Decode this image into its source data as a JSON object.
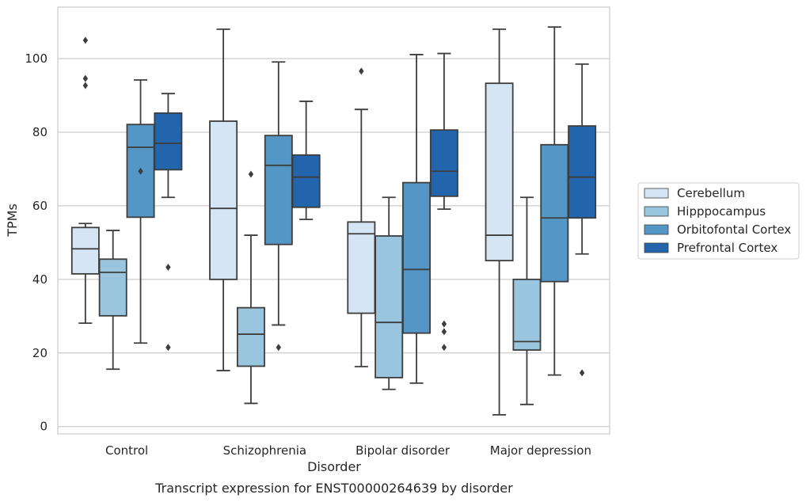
{
  "caption": "Transcript expression for ENST00000264639 by disorder",
  "chart_data": {
    "type": "boxplot",
    "xlabel": "Disorder",
    "ylabel": "TPMs",
    "ylim": [
      -2,
      114
    ],
    "yticks": [
      0,
      20,
      40,
      60,
      80,
      100
    ],
    "grid": "horizontal",
    "legend_position": "right",
    "categories": [
      "Control",
      "Schizophrenia",
      "Bipolar disorder",
      "Major depression"
    ],
    "series": [
      {
        "name": "Cerebellum",
        "color": "#d6e5f4",
        "boxes": [
          {
            "q1": 41.5,
            "median": 48.3,
            "q3": 54.1,
            "whisker_low": 28.1,
            "whisker_high": 55.2,
            "outliers": [
              105.0,
              94.6,
              92.7
            ]
          },
          {
            "q1": 40.0,
            "median": 59.3,
            "q3": 83.0,
            "whisker_low": 15.2,
            "whisker_high": 108.0,
            "outliers": []
          },
          {
            "q1": 30.8,
            "median": 52.4,
            "q3": 55.6,
            "whisker_low": 16.3,
            "whisker_high": 86.2,
            "outliers": [
              96.6
            ]
          },
          {
            "q1": 45.1,
            "median": 52.0,
            "q3": 93.3,
            "whisker_low": 3.2,
            "whisker_high": 108.0,
            "outliers": []
          }
        ]
      },
      {
        "name": "Hipppocampus",
        "color": "#9ac5de",
        "boxes": [
          {
            "q1": 30.1,
            "median": 41.9,
            "q3": 45.5,
            "whisker_low": 15.6,
            "whisker_high": 53.3,
            "outliers": []
          },
          {
            "q1": 16.4,
            "median": 25.1,
            "q3": 32.3,
            "whisker_low": 6.3,
            "whisker_high": 52.0,
            "outliers": [
              68.6
            ]
          },
          {
            "q1": 13.3,
            "median": 28.3,
            "q3": 51.8,
            "whisker_low": 10.1,
            "whisker_high": 62.3,
            "outliers": []
          },
          {
            "q1": 20.8,
            "median": 23.1,
            "q3": 40.0,
            "whisker_low": 6.0,
            "whisker_high": 62.3,
            "outliers": []
          }
        ]
      },
      {
        "name": "Orbitofontal Cortex",
        "color": "#5497c6",
        "boxes": [
          {
            "q1": 56.9,
            "median": 75.9,
            "q3": 82.1,
            "whisker_low": 22.7,
            "whisker_high": 94.2,
            "outliers": [
              69.4
            ]
          },
          {
            "q1": 49.5,
            "median": 71.0,
            "q3": 79.1,
            "whisker_low": 27.6,
            "whisker_high": 99.1,
            "outliers": [
              21.5
            ]
          },
          {
            "q1": 25.4,
            "median": 42.7,
            "q3": 66.3,
            "whisker_low": 11.8,
            "whisker_high": 101.1,
            "outliers": []
          },
          {
            "q1": 39.4,
            "median": 56.7,
            "q3": 76.6,
            "whisker_low": 14.0,
            "whisker_high": 108.6,
            "outliers": []
          }
        ]
      },
      {
        "name": "Prefrontal Cortex",
        "color": "#2265ac",
        "boxes": [
          {
            "q1": 69.8,
            "median": 77.0,
            "q3": 85.2,
            "whisker_low": 62.3,
            "whisker_high": 90.5,
            "outliers": [
              43.3,
              21.5
            ]
          },
          {
            "q1": 59.6,
            "median": 67.8,
            "q3": 73.8,
            "whisker_low": 56.3,
            "whisker_high": 88.4,
            "outliers": []
          },
          {
            "q1": 62.6,
            "median": 69.4,
            "q3": 80.6,
            "whisker_low": 59.1,
            "whisker_high": 101.4,
            "outliers": [
              27.9,
              25.8,
              21.5
            ]
          },
          {
            "q1": 56.7,
            "median": 67.8,
            "q3": 81.7,
            "whisker_low": 46.9,
            "whisker_high": 98.5,
            "outliers": [
              14.6
            ]
          }
        ]
      }
    ]
  }
}
